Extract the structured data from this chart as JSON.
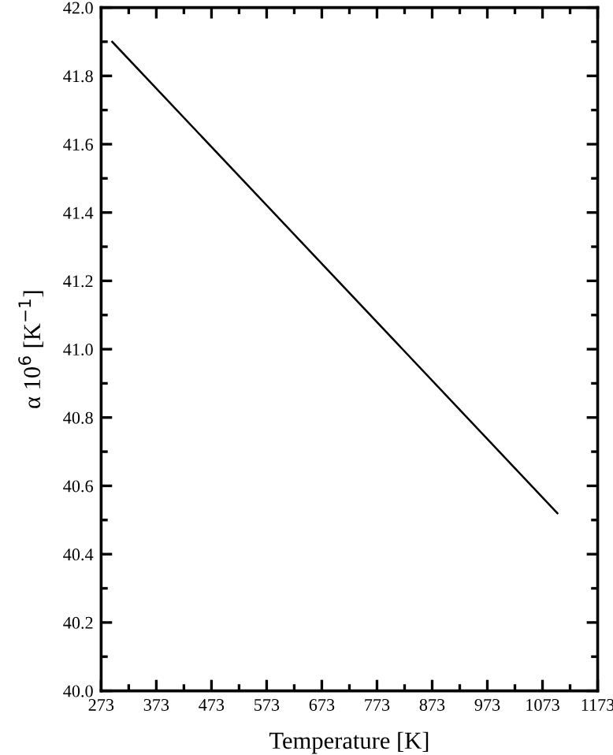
{
  "chart_data": {
    "type": "line",
    "xlabel": "Temperature [K]",
    "ylabel": "α 10$^{6}$ [K$^{−1}$]",
    "x": [
      293,
      1100
    ],
    "series": [
      {
        "color": "#000000",
        "values": [
          41.9,
          40.52
        ]
      }
    ],
    "xlim": [
      273,
      1173
    ],
    "xticks": [
      273,
      373,
      473,
      573,
      673,
      773,
      873,
      973,
      1073,
      1173
    ],
    "ylim": [
      40.0,
      42.0
    ],
    "yticks": [
      {
        "value": 40.0,
        "label": "40.0"
      },
      {
        "value": 40.2,
        "label": "40.2"
      },
      {
        "value": 40.4,
        "label": "40.4"
      },
      {
        "value": 40.6,
        "label": "40.6"
      },
      {
        "value": 40.8,
        "label": "40.8"
      },
      {
        "value": 41.0,
        "label": "41.0"
      },
      {
        "value": 41.2,
        "label": "41.2"
      },
      {
        "value": 41.4,
        "label": "41.4"
      },
      {
        "value": 41.6,
        "label": "41.6"
      },
      {
        "value": 41.8,
        "label": "41.8"
      },
      {
        "value": 42.0,
        "label": "42.0"
      }
    ],
    "grid": false,
    "legend": false,
    "marker": "none",
    "line_style": "solid"
  }
}
